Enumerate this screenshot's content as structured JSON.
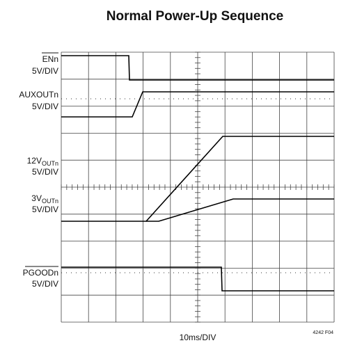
{
  "header": {
    "title": "Normal Power-Up Sequence"
  },
  "channels": [
    {
      "name": "ENn",
      "scale": "5V/DIV"
    },
    {
      "name": "AUXOUTn",
      "scale": "5V/DIV"
    },
    {
      "name": "12V",
      "subscript": "OUTn",
      "scale": "5V/DIV"
    },
    {
      "name": "3V",
      "subscript": "OUTn",
      "scale": "5V/DIV"
    },
    {
      "name": "PGOODn",
      "scale": "5V/DIV"
    }
  ],
  "footer": {
    "timebase": "10ms/DIV",
    "figure_id": "4242 F04"
  }
}
